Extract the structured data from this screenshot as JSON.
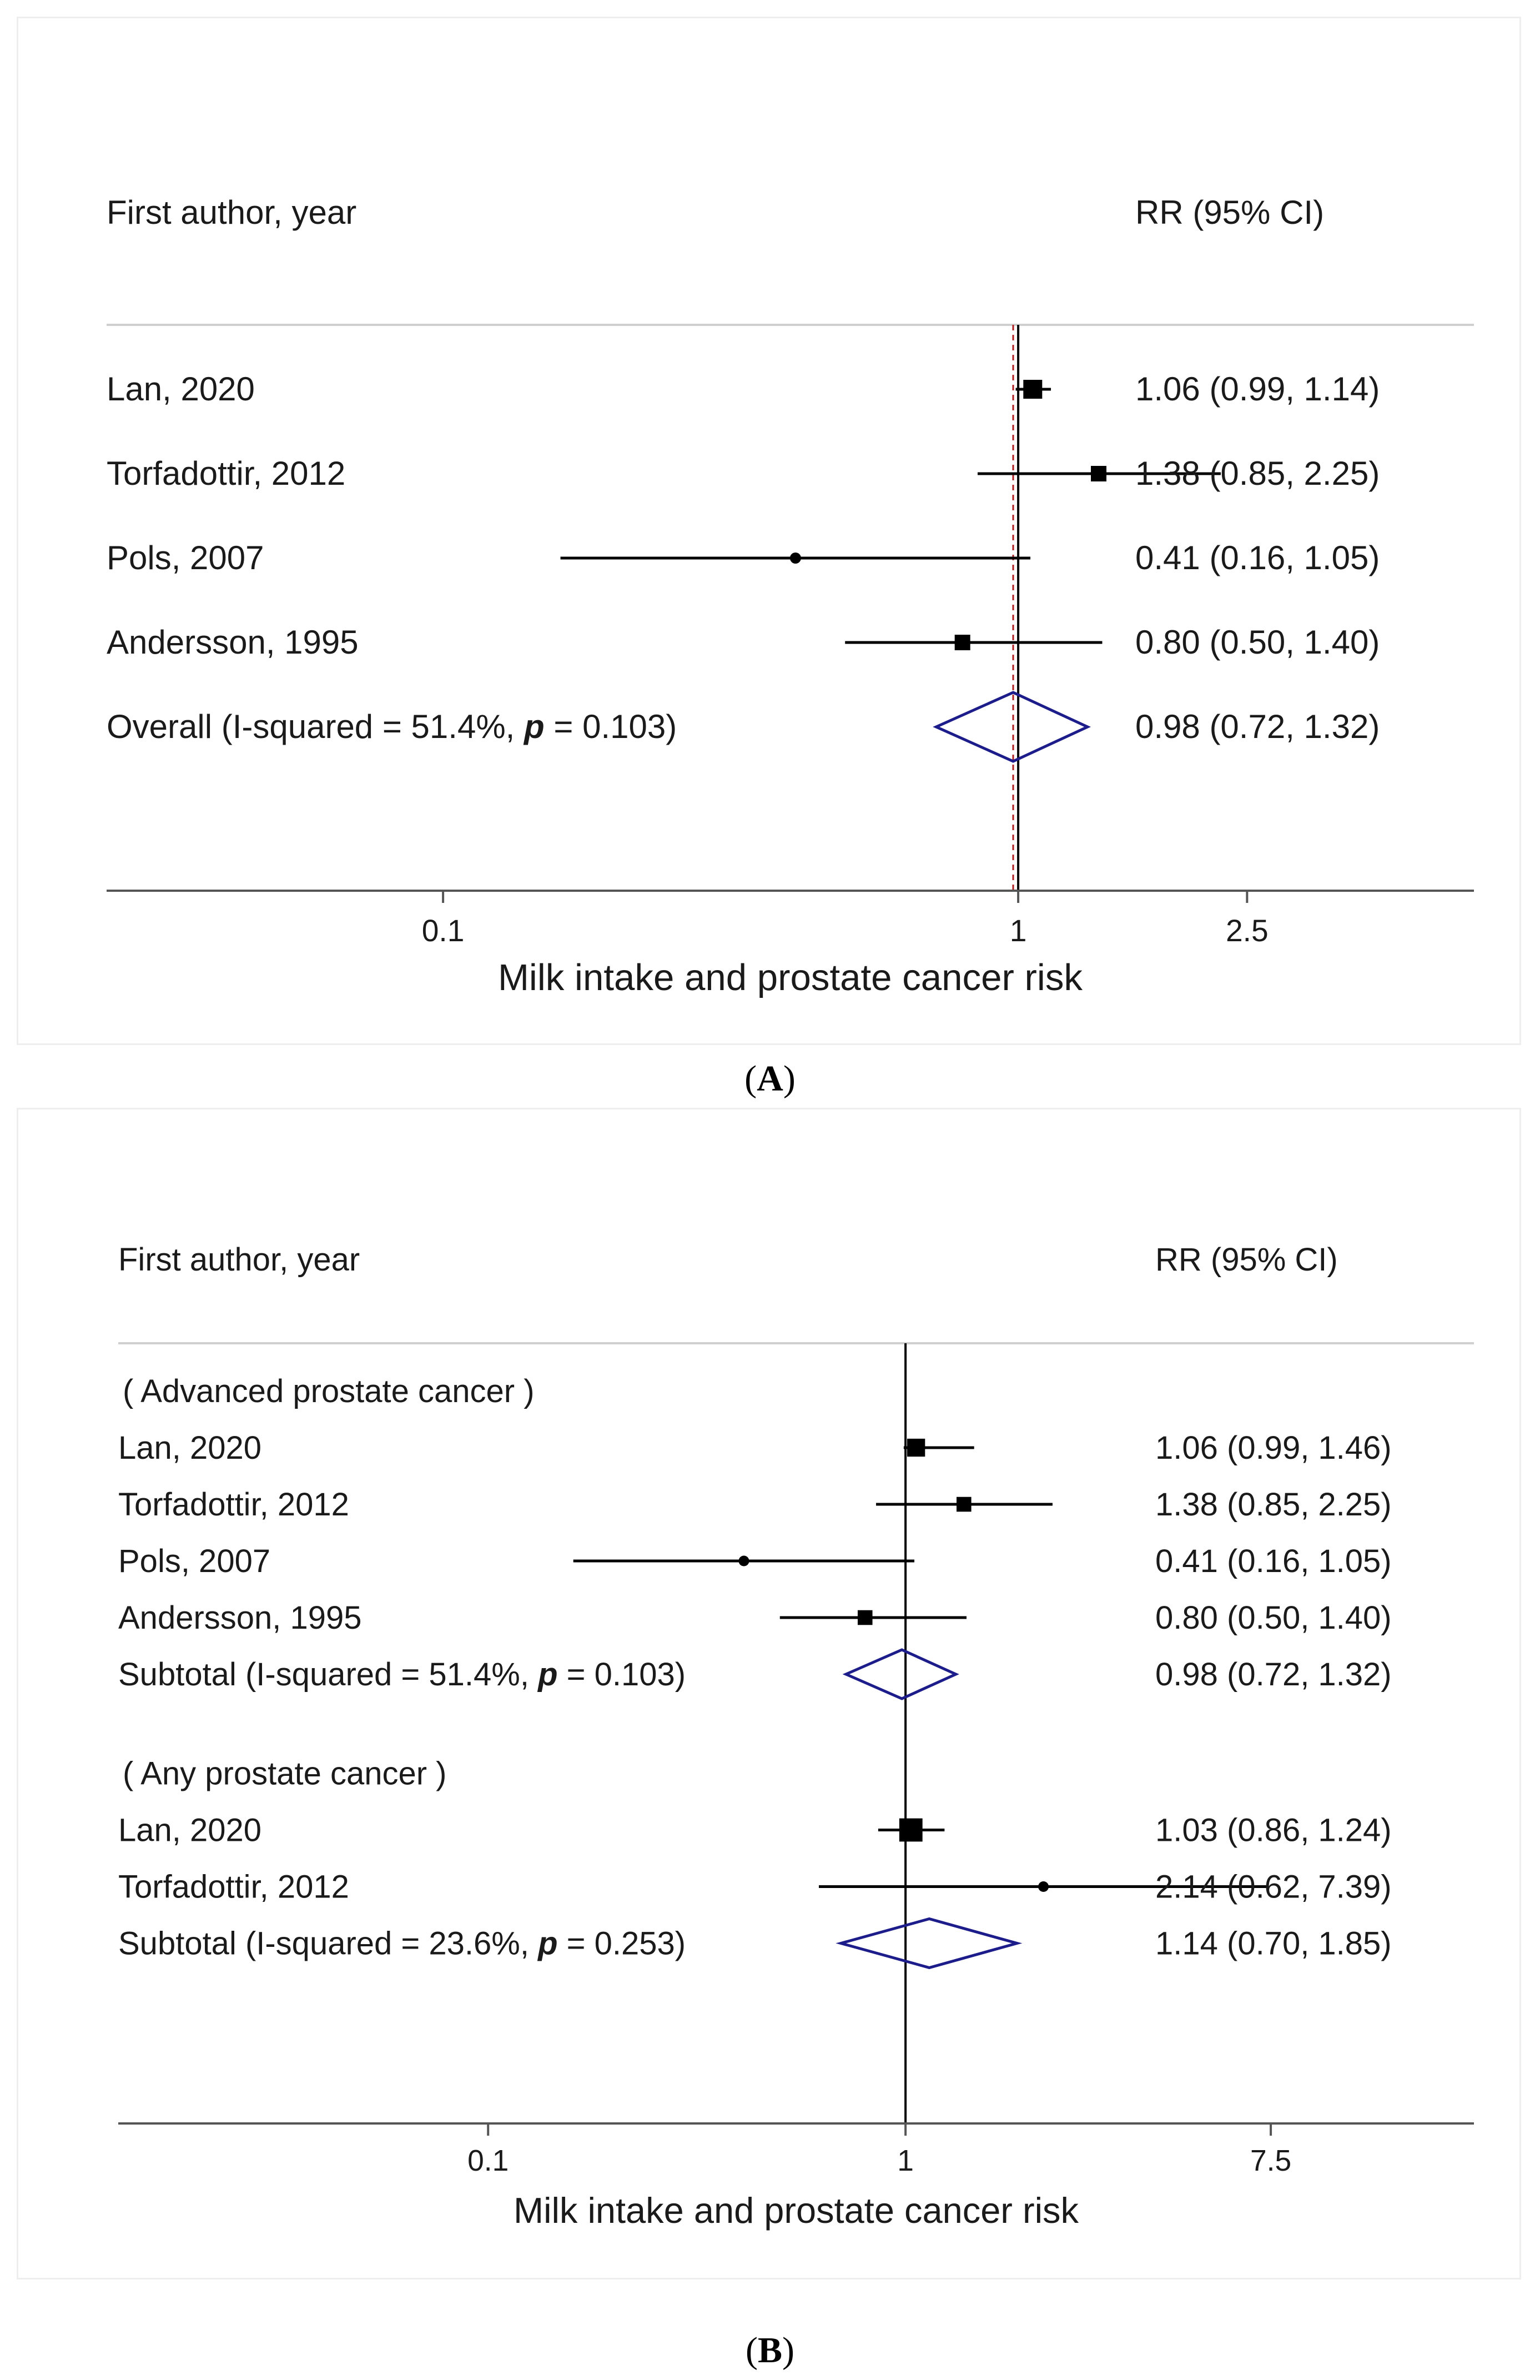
{
  "colors": {
    "text": "#1a1a1a",
    "axis": "#555555",
    "line": "#000000",
    "diamond": "#1c1c8a",
    "ref_dashed": "#b02020"
  },
  "chart_data": [
    {
      "type": "forest",
      "panel_label": "A",
      "header_left": "First author, year",
      "header_right": "RR (95% CI)",
      "xlabel": "Milk intake and prostate cancer risk",
      "x_scale": "log",
      "xlim": [
        0.026,
        6.2
      ],
      "xticks": [
        {
          "value": 0.1,
          "label": "0.1"
        },
        {
          "value": 1,
          "label": "1"
        },
        {
          "value": 2.5,
          "label": "2.5"
        }
      ],
      "reference_line": 1,
      "pooled_line": 0.98,
      "rows": [
        {
          "kind": "study",
          "label": "Lan, 2020",
          "rr": 1.06,
          "lo": 0.99,
          "hi": 1.14,
          "ci_text": "1.06 (0.99, 1.14)",
          "size": "large"
        },
        {
          "kind": "study",
          "label": "Torfadottir, 2012",
          "rr": 1.38,
          "lo": 0.85,
          "hi": 2.25,
          "ci_text": "1.38 (0.85, 2.25)",
          "size": "medium"
        },
        {
          "kind": "study",
          "label": "Pols, 2007",
          "rr": 0.41,
          "lo": 0.16,
          "hi": 1.05,
          "ci_text": "0.41 (0.16, 1.05)",
          "size": "small"
        },
        {
          "kind": "study",
          "label": "Andersson, 1995",
          "rr": 0.8,
          "lo": 0.5,
          "hi": 1.4,
          "ci_text": "0.80 (0.50, 1.40)",
          "size": "medium"
        },
        {
          "kind": "overall",
          "label_prefix": "Overall  (I-squared = 51.4%, ",
          "p_symbol": "p",
          "label_suffix": " = 0.103)",
          "rr": 0.98,
          "lo": 0.72,
          "hi": 1.32,
          "ci_text": "0.98 (0.72, 1.32)"
        }
      ]
    },
    {
      "type": "forest",
      "panel_label": "B",
      "header_left": "First author, year",
      "header_right": "RR (95% CI)",
      "xlabel": "Milk intake and prostate cancer risk",
      "x_scale": "log",
      "xlim": [
        0.013,
        23
      ],
      "xticks": [
        {
          "value": 0.1,
          "label": "0.1"
        },
        {
          "value": 1,
          "label": "1"
        },
        {
          "value": 7.5,
          "label": "7.5"
        }
      ],
      "reference_line": 1,
      "rows": [
        {
          "kind": "group",
          "label": "( Advanced prostate cancer )"
        },
        {
          "kind": "study",
          "label": "Lan, 2020",
          "rr": 1.06,
          "lo": 0.99,
          "hi": 1.46,
          "ci_text": "1.06 (0.99, 1.46)",
          "size": "large"
        },
        {
          "kind": "study",
          "label": "Torfadottir, 2012",
          "rr": 1.38,
          "lo": 0.85,
          "hi": 2.25,
          "ci_text": "1.38 (0.85, 2.25)",
          "size": "medium"
        },
        {
          "kind": "study",
          "label": "Pols, 2007",
          "rr": 0.41,
          "lo": 0.16,
          "hi": 1.05,
          "ci_text": "0.41 (0.16, 1.05)",
          "size": "small"
        },
        {
          "kind": "study",
          "label": "Andersson, 1995",
          "rr": 0.8,
          "lo": 0.5,
          "hi": 1.4,
          "ci_text": "0.80 (0.50, 1.40)",
          "size": "medium"
        },
        {
          "kind": "overall",
          "label_prefix": "Subtotal  (I-squared = 51.4%, ",
          "p_symbol": "p",
          "label_suffix": " = 0.103)",
          "rr": 0.98,
          "lo": 0.72,
          "hi": 1.32,
          "ci_text": "0.98 (0.72, 1.32)"
        },
        {
          "kind": "spacer"
        },
        {
          "kind": "group",
          "label": "( Any prostate cancer )"
        },
        {
          "kind": "study",
          "label": "Lan, 2020",
          "rr": 1.03,
          "lo": 0.86,
          "hi": 1.24,
          "ci_text": "1.03 (0.86, 1.24)",
          "size": "xlarge"
        },
        {
          "kind": "study",
          "label": "Torfadottir, 2012",
          "rr": 2.14,
          "lo": 0.62,
          "hi": 7.39,
          "ci_text": "2.14 (0.62, 7.39)",
          "size": "small"
        },
        {
          "kind": "overall",
          "label_prefix": "Subtotal  (I-squared = 23.6%, ",
          "p_symbol": "p",
          "label_suffix": " = 0.253)",
          "rr": 1.14,
          "lo": 0.7,
          "hi": 1.85,
          "ci_text": "1.14 (0.70, 1.85)"
        }
      ]
    }
  ],
  "captions": {
    "open": "(",
    "close": ")",
    "a": "A",
    "b": "B"
  }
}
